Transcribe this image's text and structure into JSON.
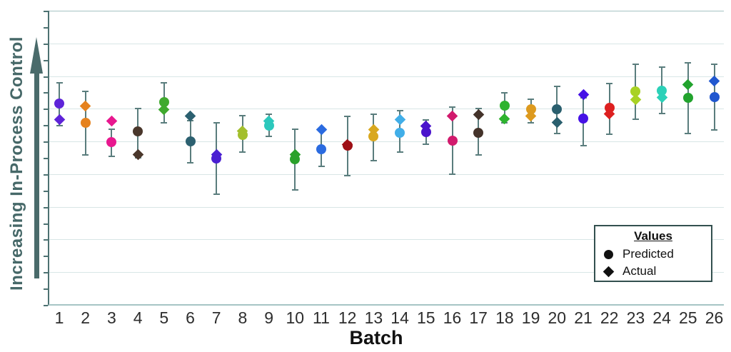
{
  "y_axis": {
    "label": "Increasing In-Process Control"
  },
  "x_axis": {
    "label": "Batch"
  },
  "legend": {
    "title": "Values",
    "items": [
      {
        "marker": "circle",
        "label": "Predicted"
      },
      {
        "marker": "diamond",
        "label": "Actual"
      }
    ]
  },
  "style_colors": {
    "axis": "#4d7272",
    "arrow": "#4a6b6b",
    "gridline": "#d8e6e6",
    "error_bar": "#5a7d7d"
  },
  "chart_data": {
    "type": "scatter",
    "title": "",
    "xlabel": "Batch",
    "ylabel": "Increasing In-Process Control",
    "ylim": [
      0,
      100
    ],
    "y_units": "relative level (axis is qualitative: increasing in-process control)",
    "grid": "horizontal-light",
    "legend_position": "bottom-right-inset",
    "categories": [
      "1",
      "2",
      "3",
      "4",
      "5",
      "6",
      "7",
      "8",
      "9",
      "10",
      "11",
      "12",
      "13",
      "14",
      "15",
      "16",
      "17",
      "18",
      "19",
      "20",
      "21",
      "22",
      "23",
      "24",
      "25",
      "26"
    ],
    "colors": [
      "#5e23d8",
      "#e5821e",
      "#e8188f",
      "#4a372b",
      "#3fa92e",
      "#2c6070",
      "#4a1fd2",
      "#a3bf2d",
      "#2cc8bc",
      "#2aa12a",
      "#2b6be0",
      "#9e1016",
      "#d9a81f",
      "#41aee8",
      "#4a14cc",
      "#d11a6d",
      "#44332a",
      "#2eb32e",
      "#dd9a1f",
      "#2a5f6e",
      "#4612e6",
      "#dd2020",
      "#a8d224",
      "#2cd1b8",
      "#22a32e",
      "#2057cf"
    ],
    "series": [
      {
        "name": "Predicted",
        "marker": "circle",
        "values": [
          68.4,
          61.9,
          55.3,
          59.0,
          68.9,
          55.6,
          49.8,
          57.8,
          60.9,
          49.5,
          52.9,
          54.1,
          57.3,
          58.5,
          58.7,
          55.8,
          58.5,
          67.7,
          66.5,
          66.5,
          63.3,
          67.0,
          72.6,
          72.8,
          70.4,
          70.6
        ]
      },
      {
        "name": "Actual",
        "marker": "diamond",
        "values": [
          63.1,
          67.5,
          62.6,
          51.0,
          66.3,
          64.3,
          51.2,
          59.0,
          62.4,
          51.2,
          59.7,
          54.6,
          59.7,
          62.9,
          60.9,
          64.3,
          64.6,
          63.3,
          64.3,
          62.1,
          71.6,
          65.0,
          69.7,
          70.4,
          75.0,
          76.0
        ]
      }
    ],
    "error_bars": {
      "applies_to": "Predicted",
      "high": [
        75.5,
        72.6,
        59.7,
        66.7,
        75.5,
        62.6,
        61.9,
        64.3,
        64.8,
        59.7,
        59.2,
        64.1,
        64.8,
        66.0,
        62.9,
        67.2,
        66.7,
        72.1,
        69.9,
        74.3,
        70.4,
        75.2,
        81.8,
        80.8,
        82.3,
        81.8
      ],
      "low": [
        60.9,
        51.0,
        50.5,
        50.0,
        61.9,
        48.3,
        37.6,
        51.9,
        57.3,
        39.1,
        47.1,
        43.9,
        49.0,
        51.9,
        54.6,
        44.4,
        51.0,
        61.9,
        61.9,
        58.3,
        54.1,
        58.0,
        63.1,
        65.0,
        58.3,
        59.5
      ]
    }
  }
}
